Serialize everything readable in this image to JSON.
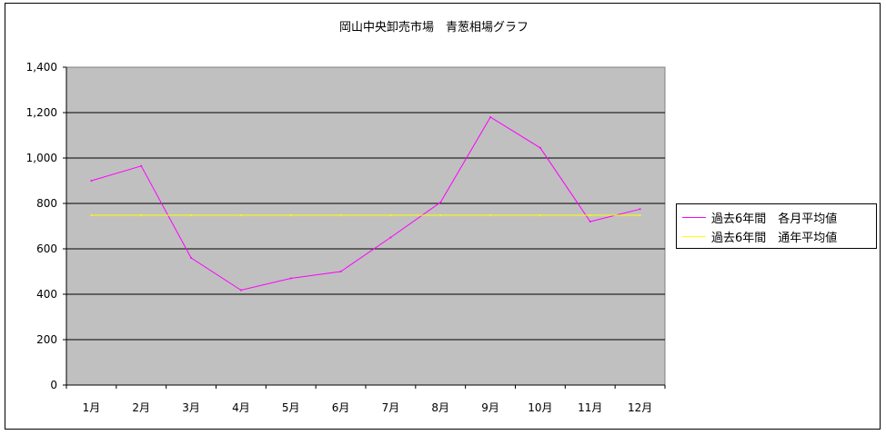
{
  "chart_data": {
    "type": "line",
    "title": "岡山中央卸売市場　青葱相場グラフ",
    "categories": [
      "1月",
      "2月",
      "3月",
      "4月",
      "5月",
      "6月",
      "7月",
      "8月",
      "9月",
      "10月",
      "11月",
      "12月"
    ],
    "y_ticks": [
      "0",
      "200",
      "400",
      "600",
      "800",
      "1,000",
      "1,200",
      "1,400"
    ],
    "ylim": [
      0,
      1400
    ],
    "grid": true,
    "plot_background": "#c0c0c0",
    "legend_position": "right",
    "series": [
      {
        "name": "過去6年間　各月平均値",
        "color": "#ff00ff",
        "values": [
          900,
          965,
          560,
          418,
          470,
          500,
          650,
          805,
          1180,
          1045,
          720,
          775
        ]
      },
      {
        "name": "過去6年間　通年平均値",
        "color": "#ffff00",
        "values": [
          748,
          748,
          748,
          748,
          748,
          748,
          748,
          748,
          748,
          748,
          748,
          748
        ]
      }
    ]
  }
}
